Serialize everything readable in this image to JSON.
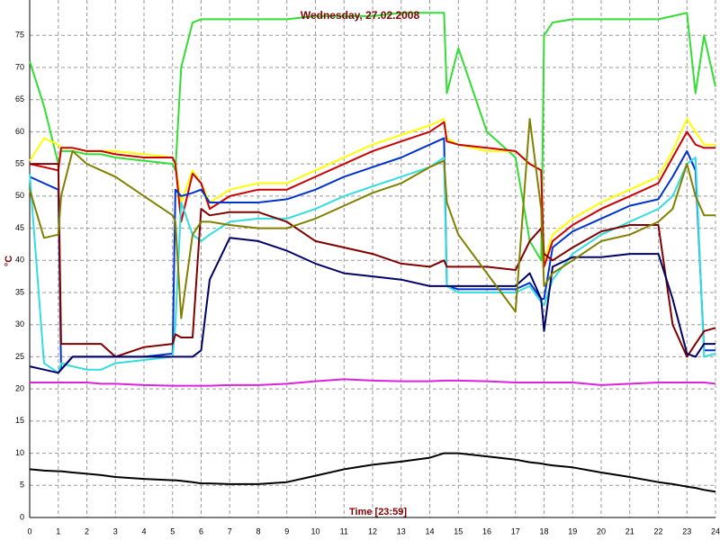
{
  "chart_data": {
    "type": "line",
    "title": "Wednesday, 27.02.2008",
    "x_label": "Time [23:59]",
    "y_label": "°C",
    "x": [
      0,
      0.5,
      1,
      1.1,
      1.5,
      2,
      2.5,
      3,
      4,
      5,
      5.1,
      5.3,
      5.7,
      6,
      6.3,
      7,
      8,
      9,
      10,
      11,
      12,
      13,
      14,
      14.5,
      14.6,
      15,
      16,
      17,
      17.5,
      17.9,
      18,
      18.3,
      19,
      20,
      21,
      22,
      22.5,
      23,
      23.3,
      23.6,
      24
    ],
    "series": [
      {
        "color": "#33dd33",
        "values": [
          71,
          64,
          55,
          57,
          57,
          56.5,
          56.5,
          56,
          55.5,
          55,
          54,
          70,
          77,
          77.5,
          77.5,
          77.5,
          77.5,
          77.5,
          78,
          78,
          78,
          78.5,
          78.5,
          78.5,
          66,
          73,
          60,
          56,
          43,
          40,
          75,
          77,
          77.5,
          77.5,
          77.5,
          77.5,
          78,
          78.5,
          66,
          75,
          67
        ]
      },
      {
        "color": "#ffff00",
        "values": [
          55.5,
          59,
          58,
          57.5,
          57.5,
          57,
          57,
          57,
          56.5,
          56,
          55,
          49,
          54,
          52,
          49,
          51,
          52,
          52,
          54,
          56,
          58,
          59.5,
          61,
          62,
          59,
          58,
          57,
          57,
          55,
          54,
          40,
          44,
          46.5,
          49,
          51,
          53,
          57,
          62,
          60,
          58,
          58
        ]
      },
      {
        "color": "#cc0000",
        "values": [
          55,
          54.5,
          54,
          57.5,
          57.5,
          57,
          57,
          56.5,
          56,
          56,
          55,
          46,
          53.5,
          52,
          48,
          50,
          51,
          51,
          53,
          55,
          57,
          58.5,
          60,
          61.5,
          58.5,
          58,
          57.5,
          57,
          55,
          54,
          39,
          43,
          45.5,
          48,
          50,
          52,
          56,
          60,
          58,
          57.5,
          57.5
        ]
      },
      {
        "color": "#0033cc",
        "values": [
          53,
          52,
          51,
          23,
          25,
          25,
          25,
          25,
          25,
          25.5,
          51,
          50,
          50.5,
          51,
          49,
          49,
          49,
          49.5,
          51,
          53,
          54.5,
          56,
          58,
          59,
          36,
          35.5,
          35.5,
          35.5,
          36.5,
          34,
          34,
          42,
          44.5,
          46.5,
          48.5,
          49.5,
          53,
          57,
          54,
          26,
          26
        ]
      },
      {
        "color": "#33dddd",
        "values": [
          53.5,
          24,
          22.5,
          24,
          23.5,
          23,
          23,
          24,
          24.5,
          25,
          30,
          49,
          44,
          43,
          44,
          46,
          46.5,
          46.5,
          48,
          50,
          51.5,
          53,
          54.5,
          56,
          36,
          35,
          35,
          35,
          36,
          33.5,
          33,
          37,
          41,
          44,
          46,
          48,
          50,
          55,
          56,
          25,
          25.5
        ]
      },
      {
        "color": "#800000",
        "values": [
          55,
          55,
          55,
          27,
          27,
          27,
          27,
          25,
          26.5,
          27,
          28.5,
          28,
          28,
          48,
          47,
          47.5,
          47.5,
          46,
          43,
          42,
          41,
          39.5,
          39,
          40,
          39,
          39,
          39,
          38.5,
          43,
          45,
          41,
          40,
          42,
          44.5,
          45.5,
          45.5,
          30,
          25,
          27,
          29,
          29.5
        ]
      },
      {
        "color": "#000066",
        "values": [
          23.5,
          23,
          22.5,
          23,
          25,
          25,
          25,
          25,
          25,
          25,
          25,
          25,
          25,
          26,
          37,
          43.5,
          43,
          41.5,
          39.5,
          38,
          37.5,
          37,
          36,
          36,
          36,
          36,
          36,
          36,
          38,
          34,
          29,
          39,
          40.5,
          40.5,
          41,
          41,
          34,
          25.5,
          25,
          27,
          27
        ]
      },
      {
        "color": "#808000",
        "values": [
          51,
          43.5,
          44,
          50,
          57,
          55,
          54,
          53,
          50,
          47,
          46,
          31,
          44,
          46,
          46,
          45.5,
          45,
          45,
          46.5,
          48.5,
          50.5,
          52,
          54.5,
          55.5,
          49,
          44,
          38,
          32,
          62,
          48,
          36,
          38,
          40,
          43,
          44,
          46,
          48,
          55,
          50,
          47,
          47
        ]
      },
      {
        "color": "#dd22dd",
        "values": [
          21,
          21,
          21,
          21,
          21,
          21,
          20.8,
          20.8,
          20.6,
          20.5,
          20.5,
          20.5,
          20.5,
          20.5,
          20.5,
          20.6,
          20.6,
          20.8,
          21.2,
          21.5,
          21.3,
          21.2,
          21.2,
          21.3,
          21.3,
          21.3,
          21.2,
          21,
          21,
          21,
          21,
          21,
          21,
          20.6,
          20.8,
          21,
          21,
          21,
          21,
          21,
          20.8
        ]
      },
      {
        "color": "#000000",
        "values": [
          7.5,
          7.3,
          7.2,
          7.2,
          7,
          6.8,
          6.6,
          6.3,
          6,
          5.8,
          5.8,
          5.7,
          5.5,
          5.3,
          5.3,
          5.2,
          5.2,
          5.5,
          6.5,
          7.5,
          8.2,
          8.7,
          9.3,
          10,
          10,
          10,
          9.5,
          9,
          8.6,
          8.4,
          8.3,
          8.1,
          7.8,
          7,
          6.3,
          5.5,
          5.2,
          4.8,
          4.6,
          4.3,
          4
        ]
      }
    ],
    "xlim": [
      0,
      24
    ],
    "ylim": [
      0,
      80.5
    ],
    "xticks": [
      0,
      1,
      2,
      3,
      4,
      5,
      6,
      7,
      8,
      9,
      10,
      11,
      12,
      13,
      14,
      15,
      16,
      17,
      18,
      19,
      20,
      21,
      22,
      23,
      24
    ],
    "yticks": [
      0,
      5,
      10,
      15,
      20,
      25,
      30,
      35,
      40,
      45,
      50,
      55,
      60,
      65,
      70,
      75
    ],
    "grid": true
  }
}
